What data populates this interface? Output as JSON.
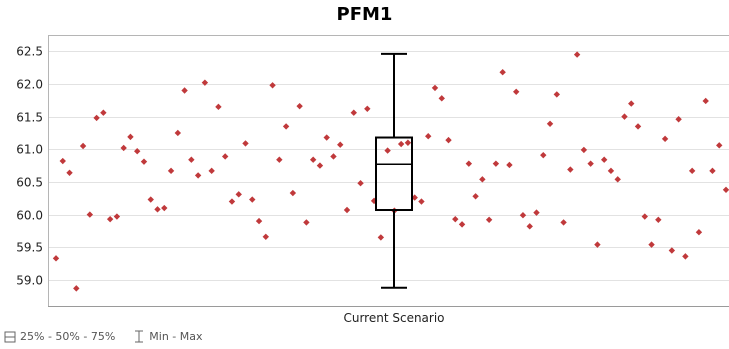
{
  "chart_data": {
    "type": "scatter",
    "title": "PFM1",
    "xlabel": "Current Scenario",
    "ylabel": "",
    "ylim": [
      58.6,
      62.75
    ],
    "yticks": [
      "62.5",
      "62.0",
      "61.5",
      "61.0",
      "60.5",
      "60.0",
      "59.5",
      "59.0"
    ],
    "grid": "horizontal",
    "point_color": "#c0393b",
    "box": {
      "min": 58.88,
      "q1": 60.07,
      "median": 60.77,
      "q3": 61.18,
      "max": 62.46
    },
    "points": [
      {
        "x": 1,
        "y": 59.33
      },
      {
        "x": 2,
        "y": 60.82
      },
      {
        "x": 3,
        "y": 60.64
      },
      {
        "x": 4,
        "y": 58.87
      },
      {
        "x": 5,
        "y": 61.05
      },
      {
        "x": 6,
        "y": 60.0
      },
      {
        "x": 7,
        "y": 61.48
      },
      {
        "x": 8,
        "y": 61.56
      },
      {
        "x": 9,
        "y": 59.93
      },
      {
        "x": 10,
        "y": 59.97
      },
      {
        "x": 11,
        "y": 61.02
      },
      {
        "x": 12,
        "y": 61.19
      },
      {
        "x": 13,
        "y": 60.97
      },
      {
        "x": 14,
        "y": 60.81
      },
      {
        "x": 15,
        "y": 60.23
      },
      {
        "x": 16,
        "y": 60.08
      },
      {
        "x": 17,
        "y": 60.1
      },
      {
        "x": 18,
        "y": 60.67
      },
      {
        "x": 19,
        "y": 61.25
      },
      {
        "x": 20,
        "y": 61.9
      },
      {
        "x": 21,
        "y": 60.84
      },
      {
        "x": 22,
        "y": 60.6
      },
      {
        "x": 23,
        "y": 62.02
      },
      {
        "x": 24,
        "y": 60.67
      },
      {
        "x": 25,
        "y": 61.65
      },
      {
        "x": 26,
        "y": 60.89
      },
      {
        "x": 27,
        "y": 60.2
      },
      {
        "x": 28,
        "y": 60.31
      },
      {
        "x": 29,
        "y": 61.09
      },
      {
        "x": 30,
        "y": 60.23
      },
      {
        "x": 31,
        "y": 59.9
      },
      {
        "x": 32,
        "y": 59.66
      },
      {
        "x": 33,
        "y": 61.98
      },
      {
        "x": 34,
        "y": 60.84
      },
      {
        "x": 35,
        "y": 61.35
      },
      {
        "x": 36,
        "y": 60.33
      },
      {
        "x": 37,
        "y": 61.66
      },
      {
        "x": 38,
        "y": 59.88
      },
      {
        "x": 39,
        "y": 60.84
      },
      {
        "x": 40,
        "y": 60.75
      },
      {
        "x": 41,
        "y": 61.18
      },
      {
        "x": 42,
        "y": 60.89
      },
      {
        "x": 43,
        "y": 61.07
      },
      {
        "x": 44,
        "y": 60.07
      },
      {
        "x": 45,
        "y": 61.56
      },
      {
        "x": 46,
        "y": 60.48
      },
      {
        "x": 47,
        "y": 61.62
      },
      {
        "x": 48,
        "y": 60.21
      },
      {
        "x": 49,
        "y": 59.65
      },
      {
        "x": 50,
        "y": 60.98
      },
      {
        "x": 51,
        "y": 60.06
      },
      {
        "x": 52,
        "y": 61.08
      },
      {
        "x": 53,
        "y": 61.1
      },
      {
        "x": 54,
        "y": 60.26
      },
      {
        "x": 55,
        "y": 60.2
      },
      {
        "x": 56,
        "y": 61.2
      },
      {
        "x": 57,
        "y": 61.94
      },
      {
        "x": 58,
        "y": 61.78
      },
      {
        "x": 59,
        "y": 61.14
      },
      {
        "x": 60,
        "y": 59.93
      },
      {
        "x": 61,
        "y": 59.85
      },
      {
        "x": 62,
        "y": 60.78
      },
      {
        "x": 63,
        "y": 60.28
      },
      {
        "x": 64,
        "y": 60.54
      },
      {
        "x": 65,
        "y": 59.92
      },
      {
        "x": 66,
        "y": 60.78
      },
      {
        "x": 67,
        "y": 62.18
      },
      {
        "x": 68,
        "y": 60.76
      },
      {
        "x": 69,
        "y": 61.88
      },
      {
        "x": 70,
        "y": 59.99
      },
      {
        "x": 71,
        "y": 59.82
      },
      {
        "x": 72,
        "y": 60.03
      },
      {
        "x": 73,
        "y": 60.91
      },
      {
        "x": 74,
        "y": 61.39
      },
      {
        "x": 75,
        "y": 61.84
      },
      {
        "x": 76,
        "y": 59.88
      },
      {
        "x": 77,
        "y": 60.69
      },
      {
        "x": 78,
        "y": 62.45
      },
      {
        "x": 79,
        "y": 60.99
      },
      {
        "x": 80,
        "y": 60.78
      },
      {
        "x": 81,
        "y": 59.54
      },
      {
        "x": 82,
        "y": 60.84
      },
      {
        "x": 83,
        "y": 60.67
      },
      {
        "x": 84,
        "y": 60.54
      },
      {
        "x": 85,
        "y": 61.5
      },
      {
        "x": 86,
        "y": 61.7
      },
      {
        "x": 87,
        "y": 61.35
      },
      {
        "x": 88,
        "y": 59.97
      },
      {
        "x": 89,
        "y": 59.54
      },
      {
        "x": 90,
        "y": 59.92
      },
      {
        "x": 91,
        "y": 61.16
      },
      {
        "x": 92,
        "y": 59.45
      },
      {
        "x": 93,
        "y": 61.46
      },
      {
        "x": 94,
        "y": 59.36
      },
      {
        "x": 95,
        "y": 60.67
      },
      {
        "x": 96,
        "y": 59.73
      },
      {
        "x": 97,
        "y": 61.74
      },
      {
        "x": 98,
        "y": 60.67
      },
      {
        "x": 99,
        "y": 61.06
      },
      {
        "x": 100,
        "y": 60.38
      }
    ]
  },
  "legend": {
    "box_label": "25% - 50% - 75%",
    "whisker_label": "Min - Max"
  }
}
